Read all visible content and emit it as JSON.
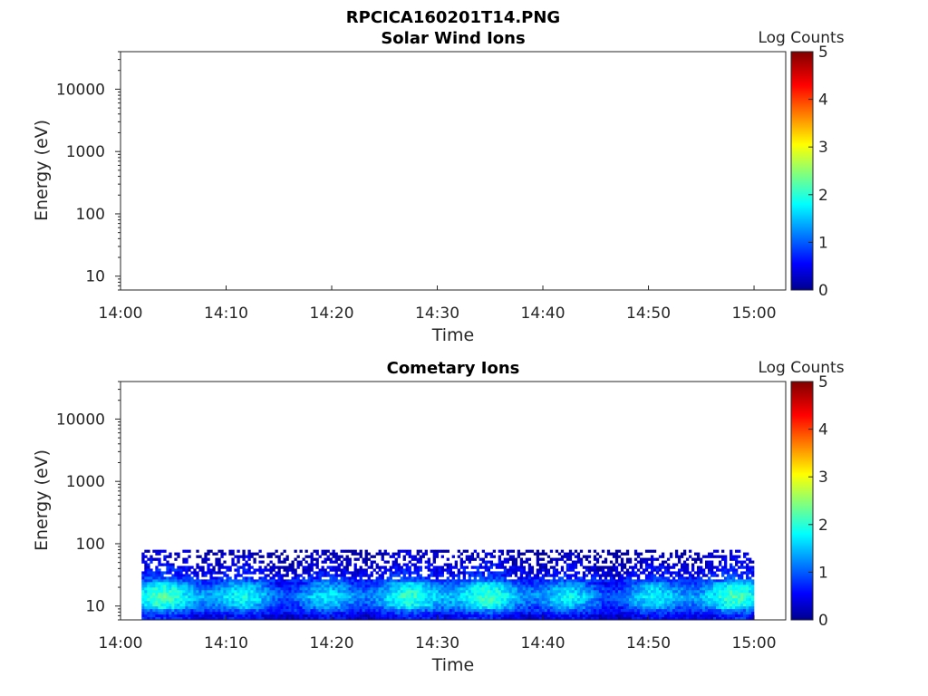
{
  "figure": {
    "title": "RPCICA160201T14.PNG"
  },
  "chart_data": [
    {
      "type": "heatmap",
      "title": "Solar Wind Ions",
      "xlabel": "Time",
      "ylabel": "Energy (eV)",
      "x_ticks": [
        "14:00",
        "14:10",
        "14:20",
        "14:30",
        "14:40",
        "14:50",
        "15:00"
      ],
      "xlim": [
        "14:00",
        "15:03"
      ],
      "y_scale": "log",
      "y_ticks": [
        10,
        100,
        1000,
        10000
      ],
      "y_tick_labels": [
        "10",
        "100",
        "1000",
        "10000"
      ],
      "ylim": [
        6,
        40000
      ],
      "colorbar": {
        "label": "Log Counts",
        "range": [
          0,
          5
        ],
        "ticks": [
          "0",
          "1",
          "2",
          "3",
          "4",
          "5"
        ],
        "colormap": "jet"
      },
      "data": []
    },
    {
      "type": "heatmap",
      "title": "Cometary Ions",
      "xlabel": "Time",
      "ylabel": "Energy (eV)",
      "x_ticks": [
        "14:00",
        "14:10",
        "14:20",
        "14:30",
        "14:40",
        "14:50",
        "15:00"
      ],
      "xlim": [
        "14:00",
        "15:03"
      ],
      "y_scale": "log",
      "y_ticks": [
        10,
        100,
        1000,
        10000
      ],
      "y_tick_labels": [
        "10",
        "100",
        "1000",
        "10000"
      ],
      "ylim": [
        6,
        40000
      ],
      "colorbar": {
        "label": "Log Counts",
        "range": [
          0,
          5
        ],
        "ticks": [
          "0",
          "1",
          "2",
          "3",
          "4",
          "5"
        ],
        "colormap": "jet"
      },
      "data_extent": {
        "time_start": "14:02",
        "time_end": "15:00",
        "energy_min_eV": 6,
        "energy_max_eV": 80
      },
      "energy_profile": [
        {
          "energy_eV": 7,
          "log_counts": 0.5
        },
        {
          "energy_eV": 10,
          "log_counts": 1.3
        },
        {
          "energy_eV": 14,
          "log_counts": 1.6
        },
        {
          "energy_eV": 20,
          "log_counts": 1.3
        },
        {
          "energy_eV": 30,
          "log_counts": 0.6
        },
        {
          "energy_eV": 50,
          "log_counts": 0.3
        },
        {
          "energy_eV": 80,
          "log_counts": 0.1
        }
      ]
    }
  ]
}
